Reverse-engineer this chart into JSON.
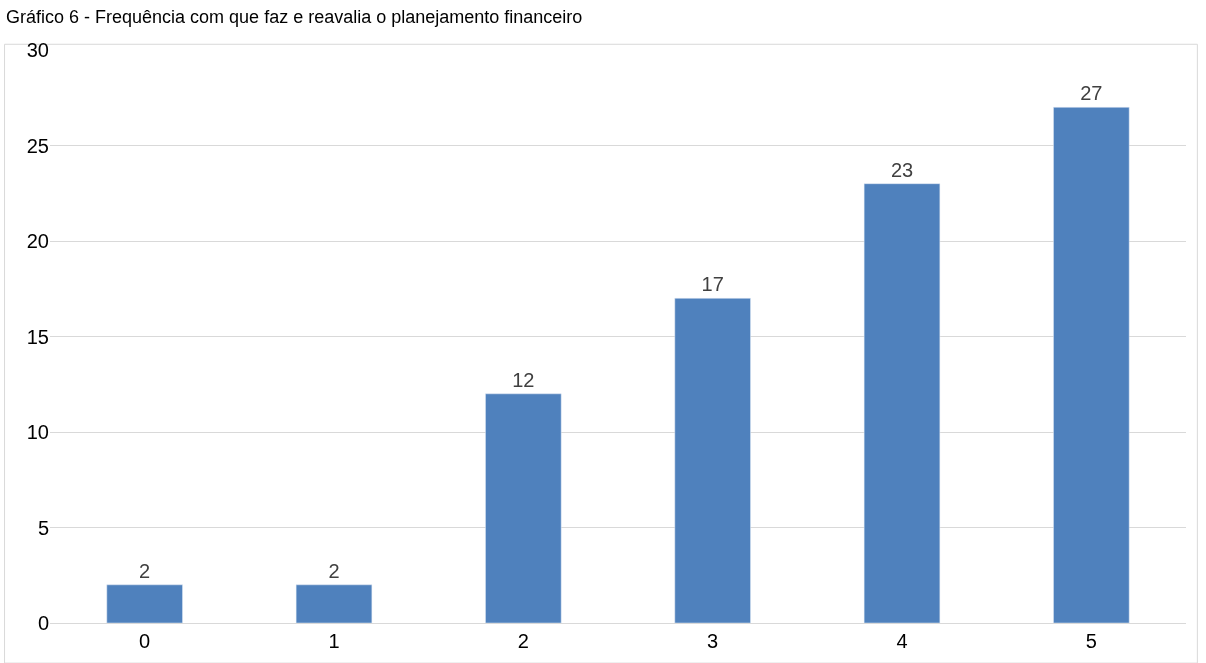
{
  "chart_data": {
    "type": "bar",
    "title": "Gráfico 6 - Frequência com que faz e reavalia o planejamento financeiro",
    "categories": [
      "0",
      "1",
      "2",
      "3",
      "4",
      "5"
    ],
    "values": [
      2,
      2,
      12,
      17,
      23,
      27
    ],
    "color": "#4f81bd",
    "ylim": [
      0,
      30
    ],
    "yticks": [
      0,
      5,
      10,
      15,
      20,
      25,
      30
    ],
    "grid": "y",
    "data_labels": true,
    "legend": false
  }
}
